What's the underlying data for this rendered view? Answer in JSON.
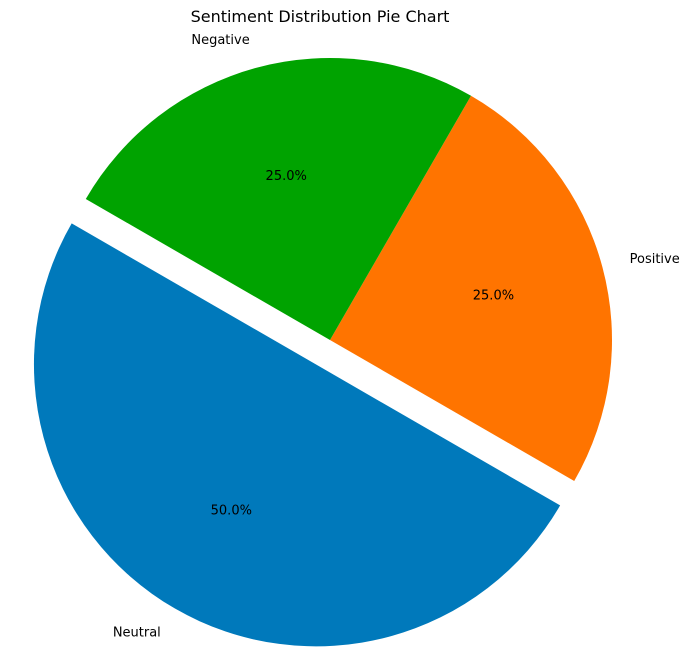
{
  "chart_data": {
    "type": "pie",
    "title": "Sentiment Distribution Pie Chart",
    "slices": [
      {
        "label": "Positive",
        "value": 25.0,
        "pct_label": "25.0%",
        "color": "#ff7400",
        "explode": 0
      },
      {
        "label": "Negative",
        "value": 25.0,
        "pct_label": "25.0%",
        "color": "#00a300",
        "explode": 0
      },
      {
        "label": "Neutral",
        "value": 50.0,
        "pct_label": "50.0%",
        "color": "#0079bb",
        "explode": 0.1
      }
    ],
    "start_angle_deg": -30,
    "direction": "counterclockwise",
    "legend": "none"
  }
}
